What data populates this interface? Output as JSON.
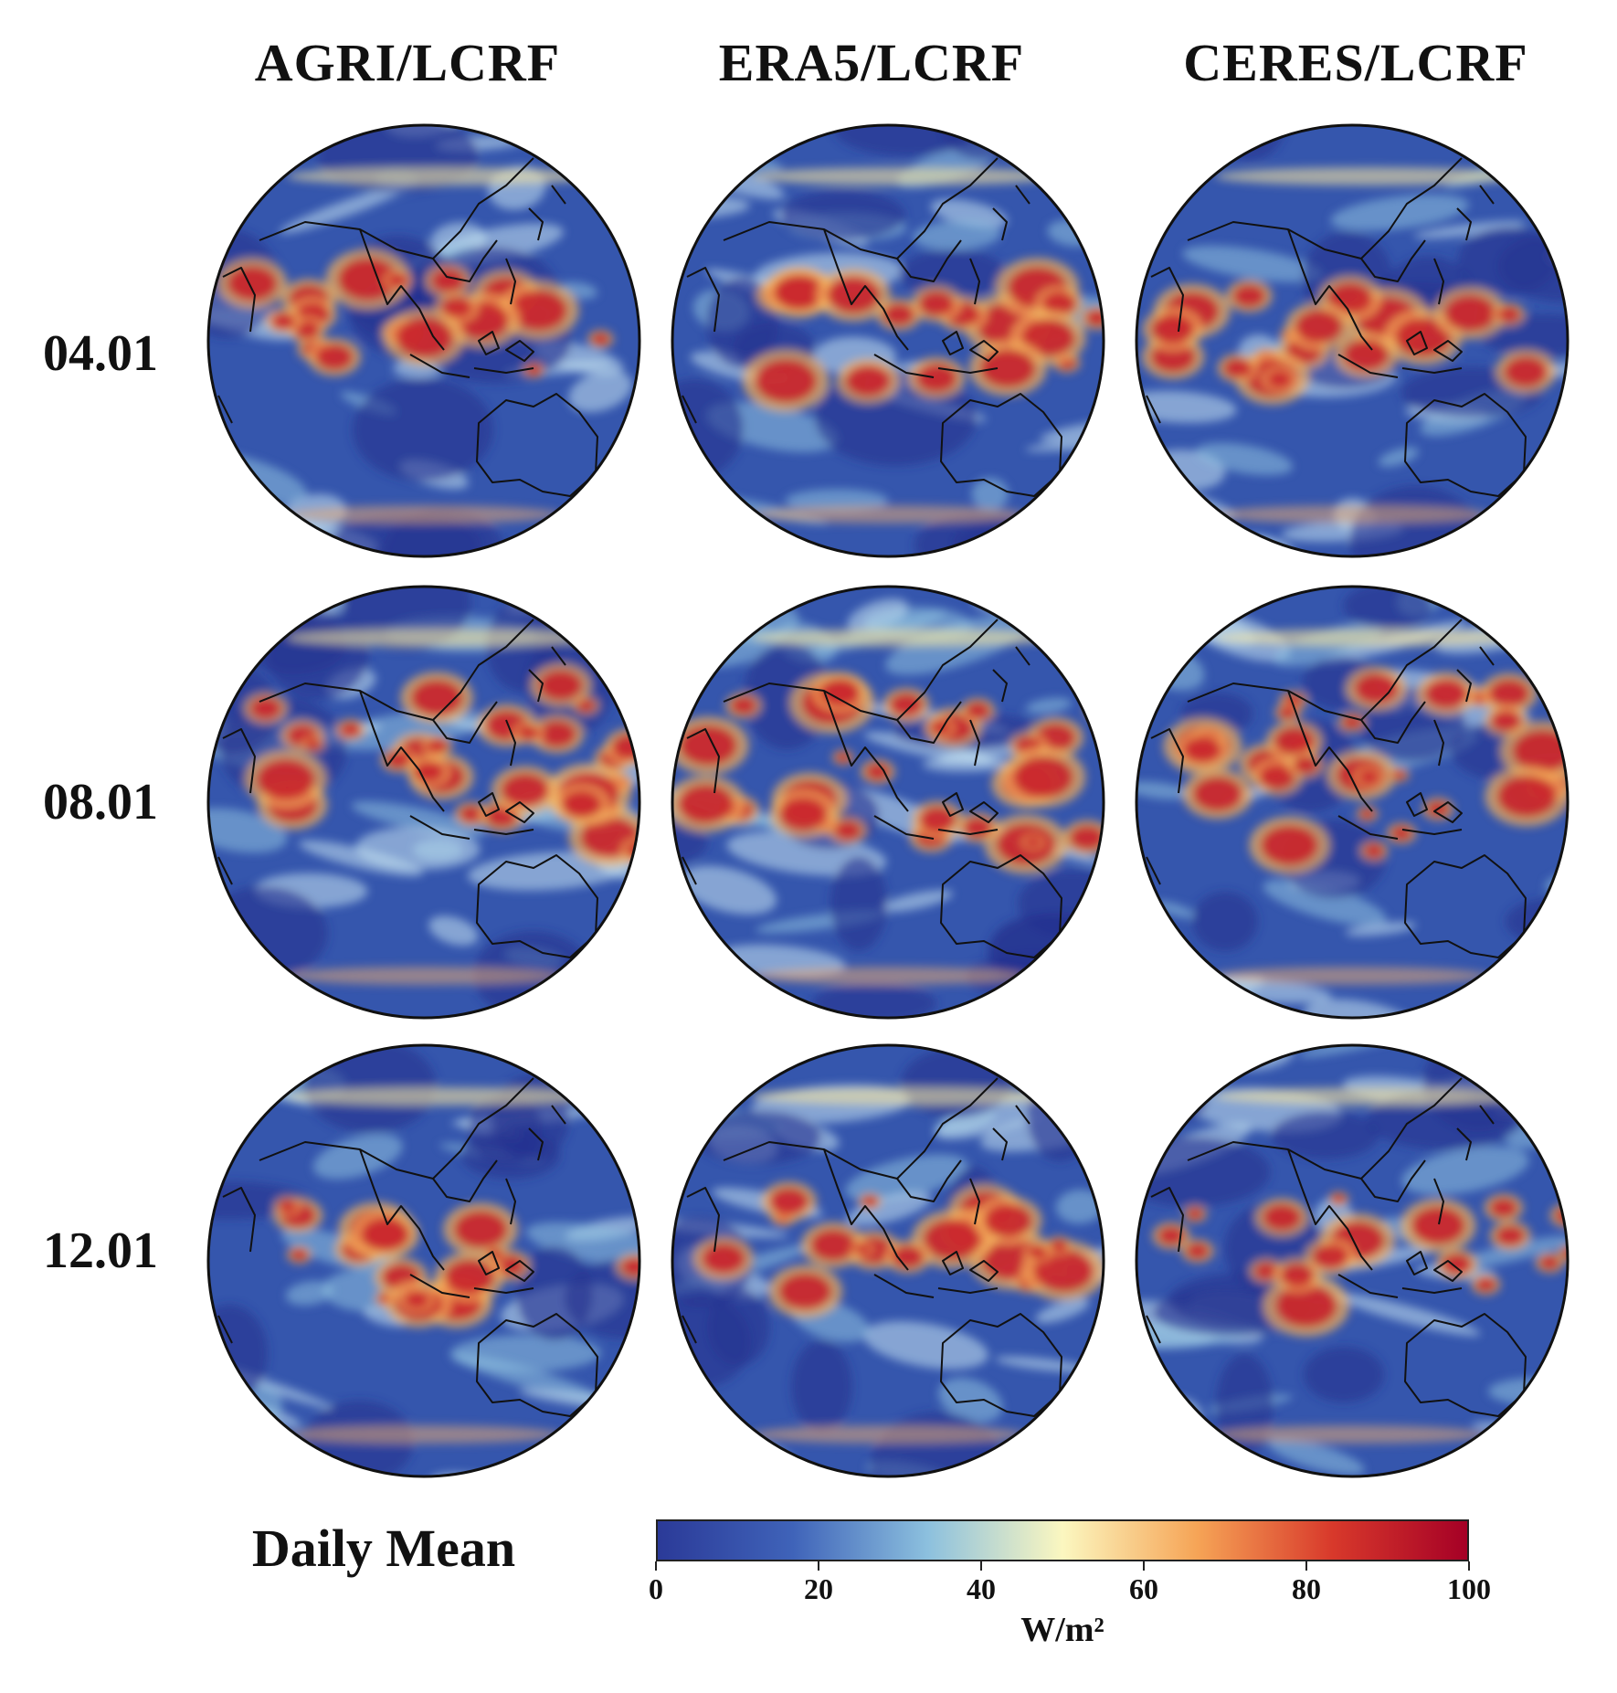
{
  "columns": [
    "AGRI/LCRF",
    "ERA5/LCRF",
    "CERES/LCRF"
  ],
  "rows": [
    "04.01",
    "08.01",
    "12.01"
  ],
  "legend": {
    "title": "Daily Mean",
    "unit": "W/m²",
    "ticks": [
      "0",
      "20",
      "40",
      "60",
      "80",
      "100"
    ],
    "colors": [
      "#2b3a98",
      "#3f63b9",
      "#8cc0de",
      "#fbf7c0",
      "#f6a456",
      "#d8392b",
      "#a50026"
    ]
  }
}
